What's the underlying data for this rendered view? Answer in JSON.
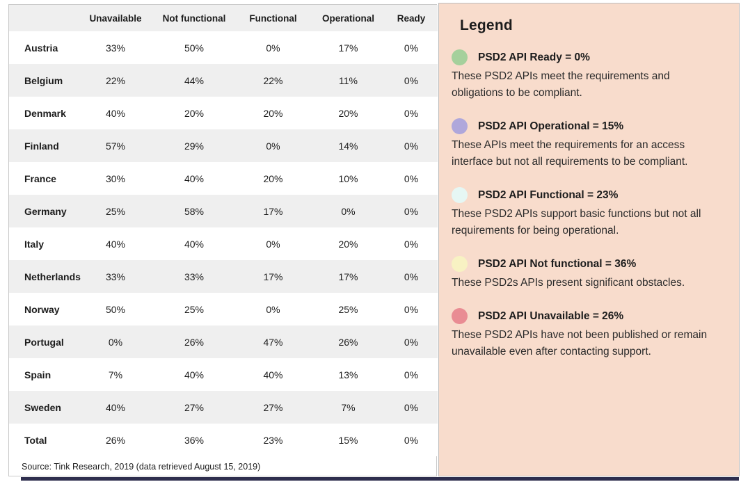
{
  "table": {
    "columns": [
      "",
      "Unavailable",
      "Not functional",
      "Functional",
      "Operational",
      "Ready"
    ],
    "rows": [
      {
        "country": "Austria",
        "values": [
          "33%",
          "50%",
          "0%",
          "17%",
          "0%"
        ]
      },
      {
        "country": "Belgium",
        "values": [
          "22%",
          "44%",
          "22%",
          "11%",
          "0%"
        ]
      },
      {
        "country": "Denmark",
        "values": [
          "40%",
          "20%",
          "20%",
          "20%",
          "0%"
        ]
      },
      {
        "country": "Finland",
        "values": [
          "57%",
          "29%",
          "0%",
          "14%",
          "0%"
        ]
      },
      {
        "country": "France",
        "values": [
          "30%",
          "40%",
          "20%",
          "10%",
          "0%"
        ]
      },
      {
        "country": "Germany",
        "values": [
          "25%",
          "58%",
          "17%",
          "0%",
          "0%"
        ]
      },
      {
        "country": "Italy",
        "values": [
          "40%",
          "40%",
          "0%",
          "20%",
          "0%"
        ]
      },
      {
        "country": "Netherlands",
        "values": [
          "33%",
          "33%",
          "17%",
          "17%",
          "0%"
        ]
      },
      {
        "country": "Norway",
        "values": [
          "50%",
          "25%",
          "0%",
          "25%",
          "0%"
        ]
      },
      {
        "country": "Portugal",
        "values": [
          "0%",
          "26%",
          "47%",
          "26%",
          "0%"
        ]
      },
      {
        "country": "Spain",
        "values": [
          "7%",
          "40%",
          "40%",
          "13%",
          "0%"
        ]
      },
      {
        "country": "Sweden",
        "values": [
          "40%",
          "27%",
          "27%",
          "7%",
          "0%"
        ]
      },
      {
        "country": "Total",
        "values": [
          "26%",
          "36%",
          "23%",
          "15%",
          "0%"
        ]
      }
    ],
    "source": "Source: Tink Research, 2019 (data retrieved August 15, 2019)"
  },
  "legend": {
    "title": "Legend",
    "panel_color": "#f8dccc",
    "items": [
      {
        "color": "#a5d09c",
        "heading": "PSD2 API Ready = 0%",
        "description": "These PSD2 APIs meet the requirements and obligations to be compliant."
      },
      {
        "color": "#afa7db",
        "heading": "PSD2 API Operational = 15%",
        "description": "These APIs meet the requirements for an access interface but not all requirements to be compliant."
      },
      {
        "color": "#e6f7f4",
        "heading": "PSD2 API Functional = 23%",
        "description": "These PSD2 APIs support basic functions but not all requirements for being operational."
      },
      {
        "color": "#f8f2c3",
        "heading": "PSD2 API Not functional = 36%",
        "description": "These PSD2s APIs present significant obstacles."
      },
      {
        "color": "#e98c93",
        "heading": "PSD2 API Unavailable = 26%",
        "description": "These PSD2 APIs have not been published or remain unavailable even after contacting support."
      }
    ]
  },
  "chart_data": {
    "type": "table",
    "categories": [
      "Austria",
      "Belgium",
      "Denmark",
      "Finland",
      "France",
      "Germany",
      "Italy",
      "Netherlands",
      "Norway",
      "Portugal",
      "Spain",
      "Sweden",
      "Total"
    ],
    "series": [
      {
        "name": "Unavailable",
        "values": [
          33,
          22,
          40,
          57,
          30,
          25,
          40,
          33,
          50,
          0,
          7,
          40,
          26
        ]
      },
      {
        "name": "Not functional",
        "values": [
          50,
          44,
          20,
          29,
          40,
          58,
          40,
          33,
          25,
          26,
          40,
          27,
          36
        ]
      },
      {
        "name": "Functional",
        "values": [
          0,
          22,
          20,
          0,
          20,
          17,
          0,
          17,
          0,
          47,
          40,
          27,
          23
        ]
      },
      {
        "name": "Operational",
        "values": [
          17,
          11,
          20,
          14,
          10,
          0,
          20,
          17,
          25,
          26,
          13,
          7,
          15
        ]
      },
      {
        "name": "Ready",
        "values": [
          0,
          0,
          0,
          0,
          0,
          0,
          0,
          0,
          0,
          0,
          0,
          0,
          0
        ]
      }
    ],
    "unit": "%",
    "title": "",
    "legend_position": "right",
    "source": "Source: Tink Research, 2019 (data retrieved August 15, 2019)"
  }
}
